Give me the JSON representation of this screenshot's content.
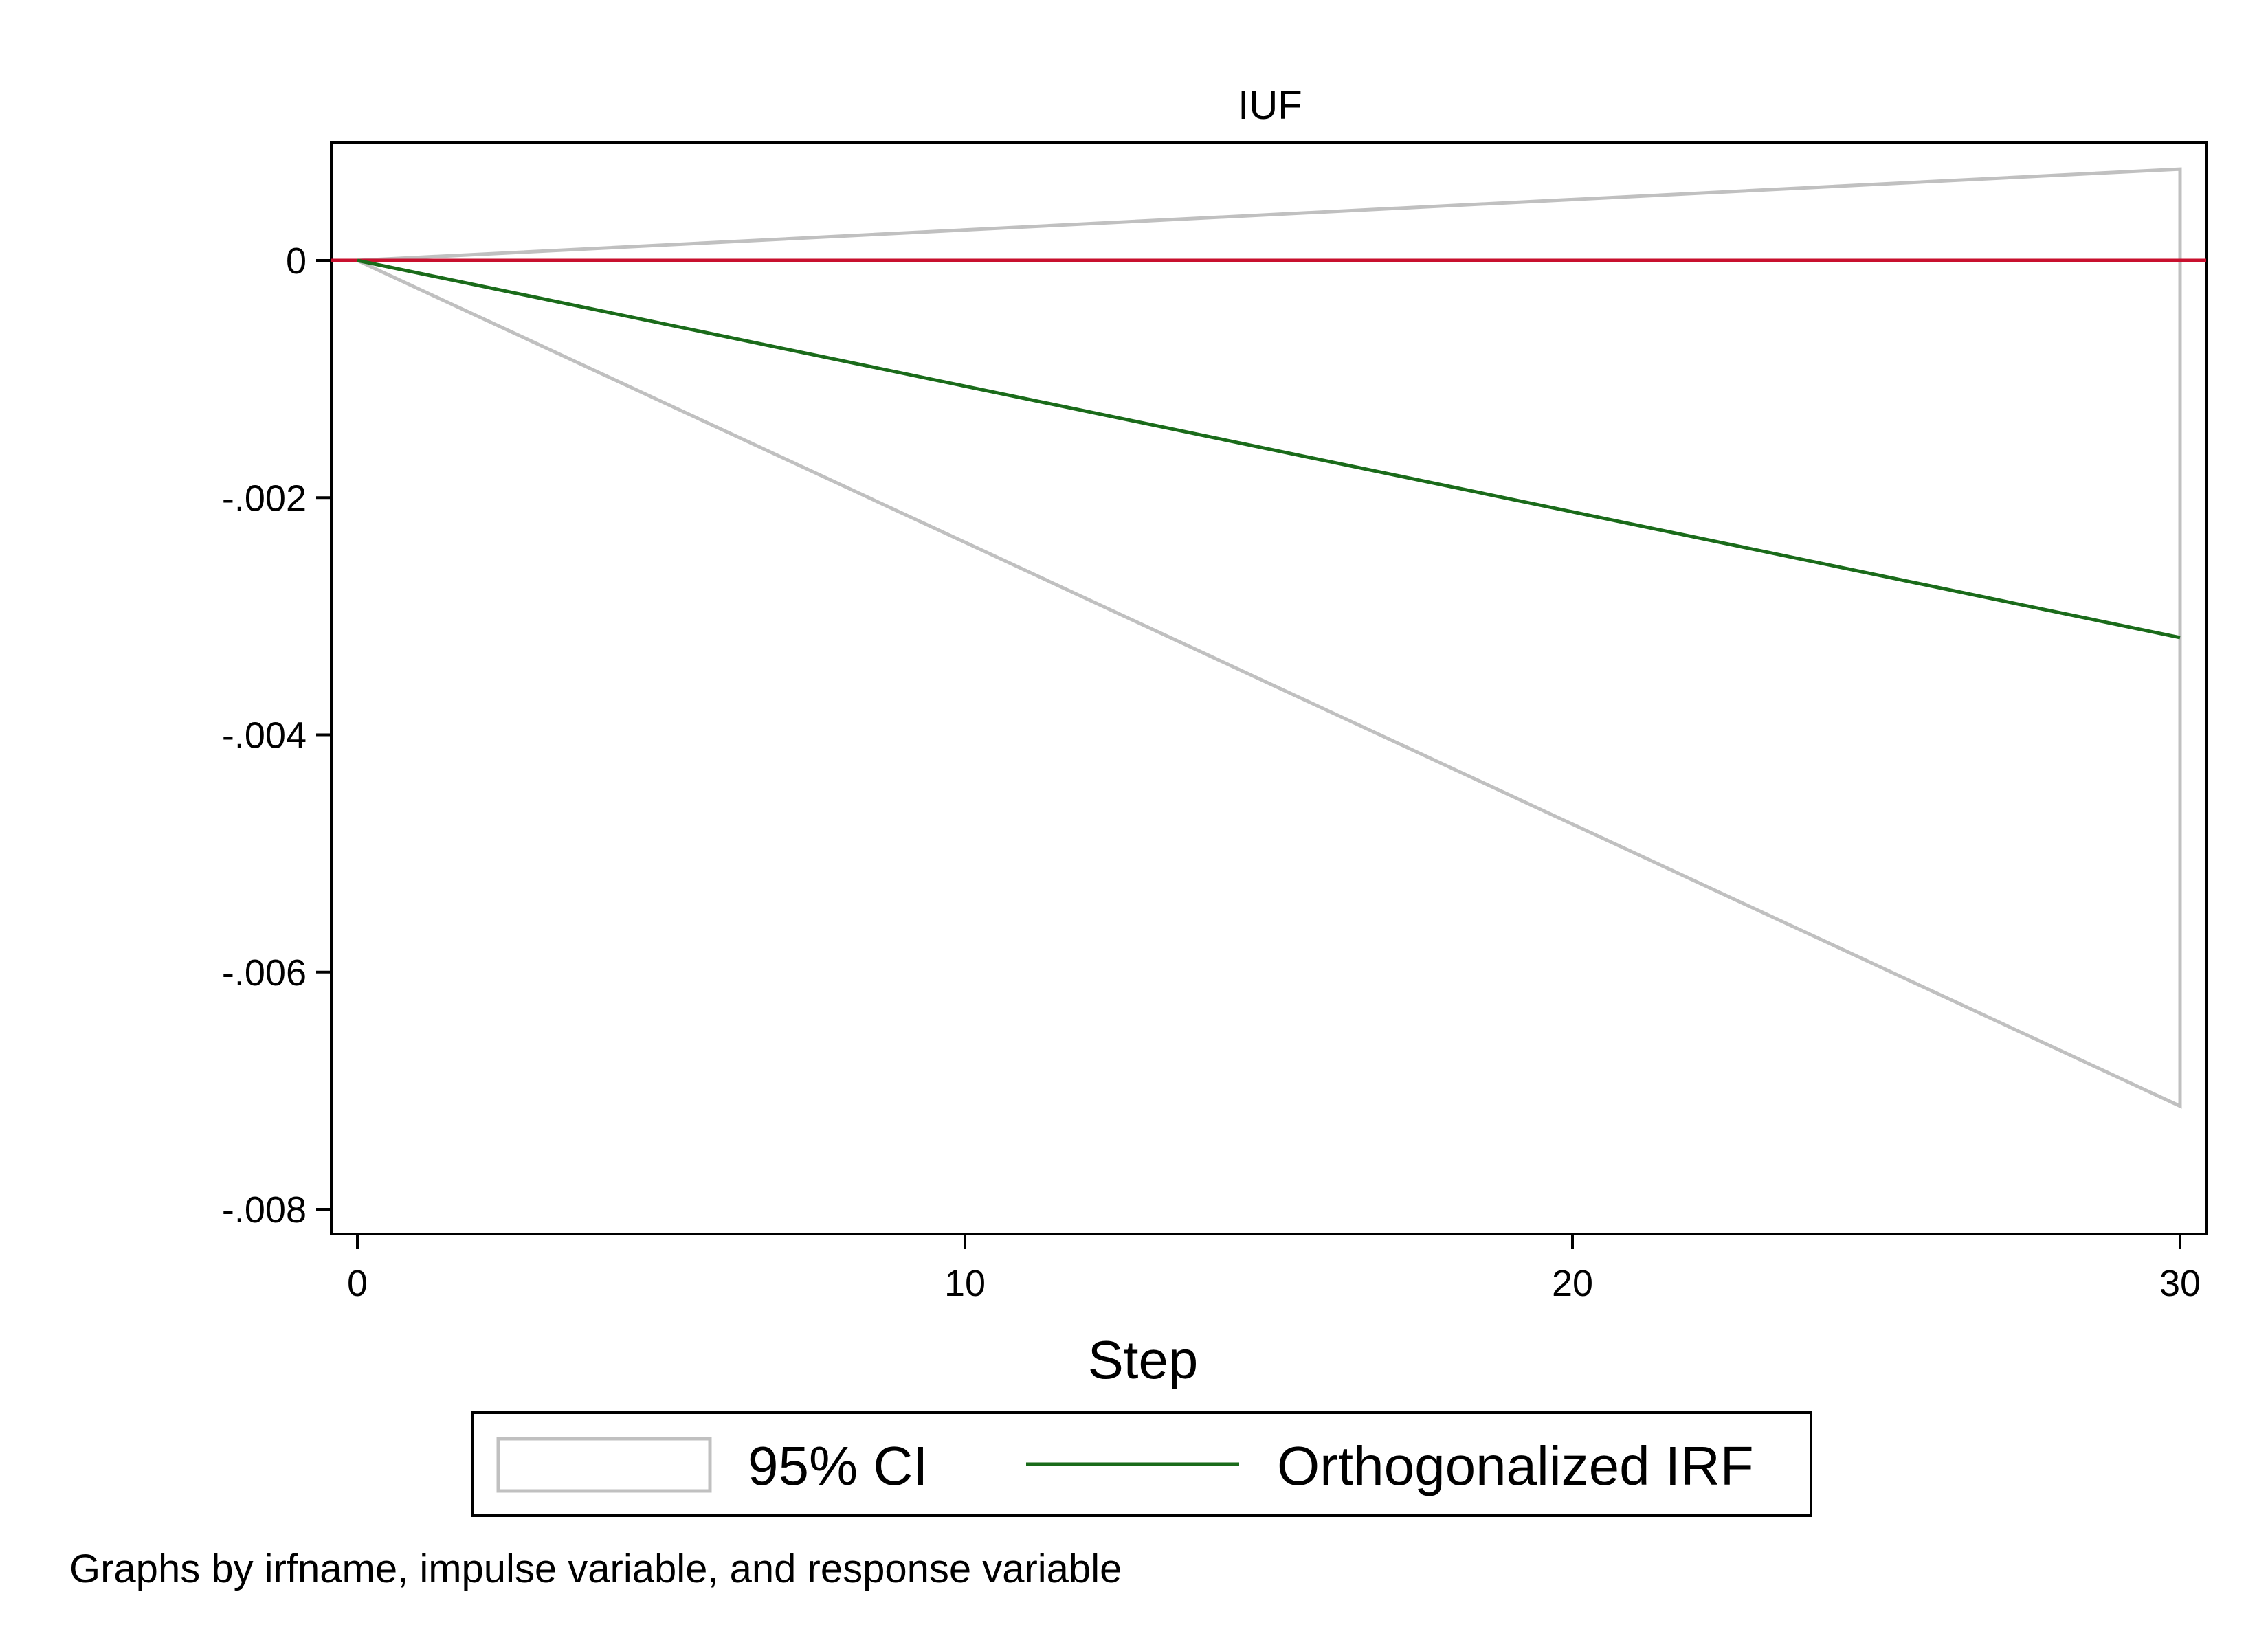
{
  "colors": {
    "ci": "#c0c0c0",
    "irf": "#1a6b1a",
    "zero_line": "#c8102e",
    "frame": "#000000"
  },
  "chart_data": {
    "type": "line",
    "title": "IUF",
    "xlabel": "Step",
    "ylabel": "",
    "xlim": [
      0,
      30
    ],
    "ylim": [
      -0.008,
      0.001
    ],
    "x_ticks": [
      0,
      10,
      20,
      30
    ],
    "x_tick_labels": [
      "0",
      "10",
      "20",
      "30"
    ],
    "y_ticks": [
      0,
      -0.002,
      -0.004,
      -0.006,
      -0.008
    ],
    "y_tick_labels": [
      "0",
      "-.002",
      "-.004",
      "-.006",
      "-.008"
    ],
    "grid": false,
    "reference_line": {
      "y": 0
    },
    "series": [
      {
        "name": "95% CI",
        "kind": "band",
        "x": [
          0,
          30
        ],
        "upper": [
          0,
          0.00077
        ],
        "lower": [
          0,
          -0.00713
        ]
      },
      {
        "name": "Orthogonalized IRF",
        "kind": "line",
        "x": [
          0,
          30
        ],
        "values": [
          0,
          -0.00318
        ]
      }
    ],
    "legend": {
      "position": "bottom",
      "entries": [
        "95% CI",
        "Orthogonalized IRF"
      ]
    },
    "note": "Graphs by irfname, impulse variable, and response variable"
  }
}
